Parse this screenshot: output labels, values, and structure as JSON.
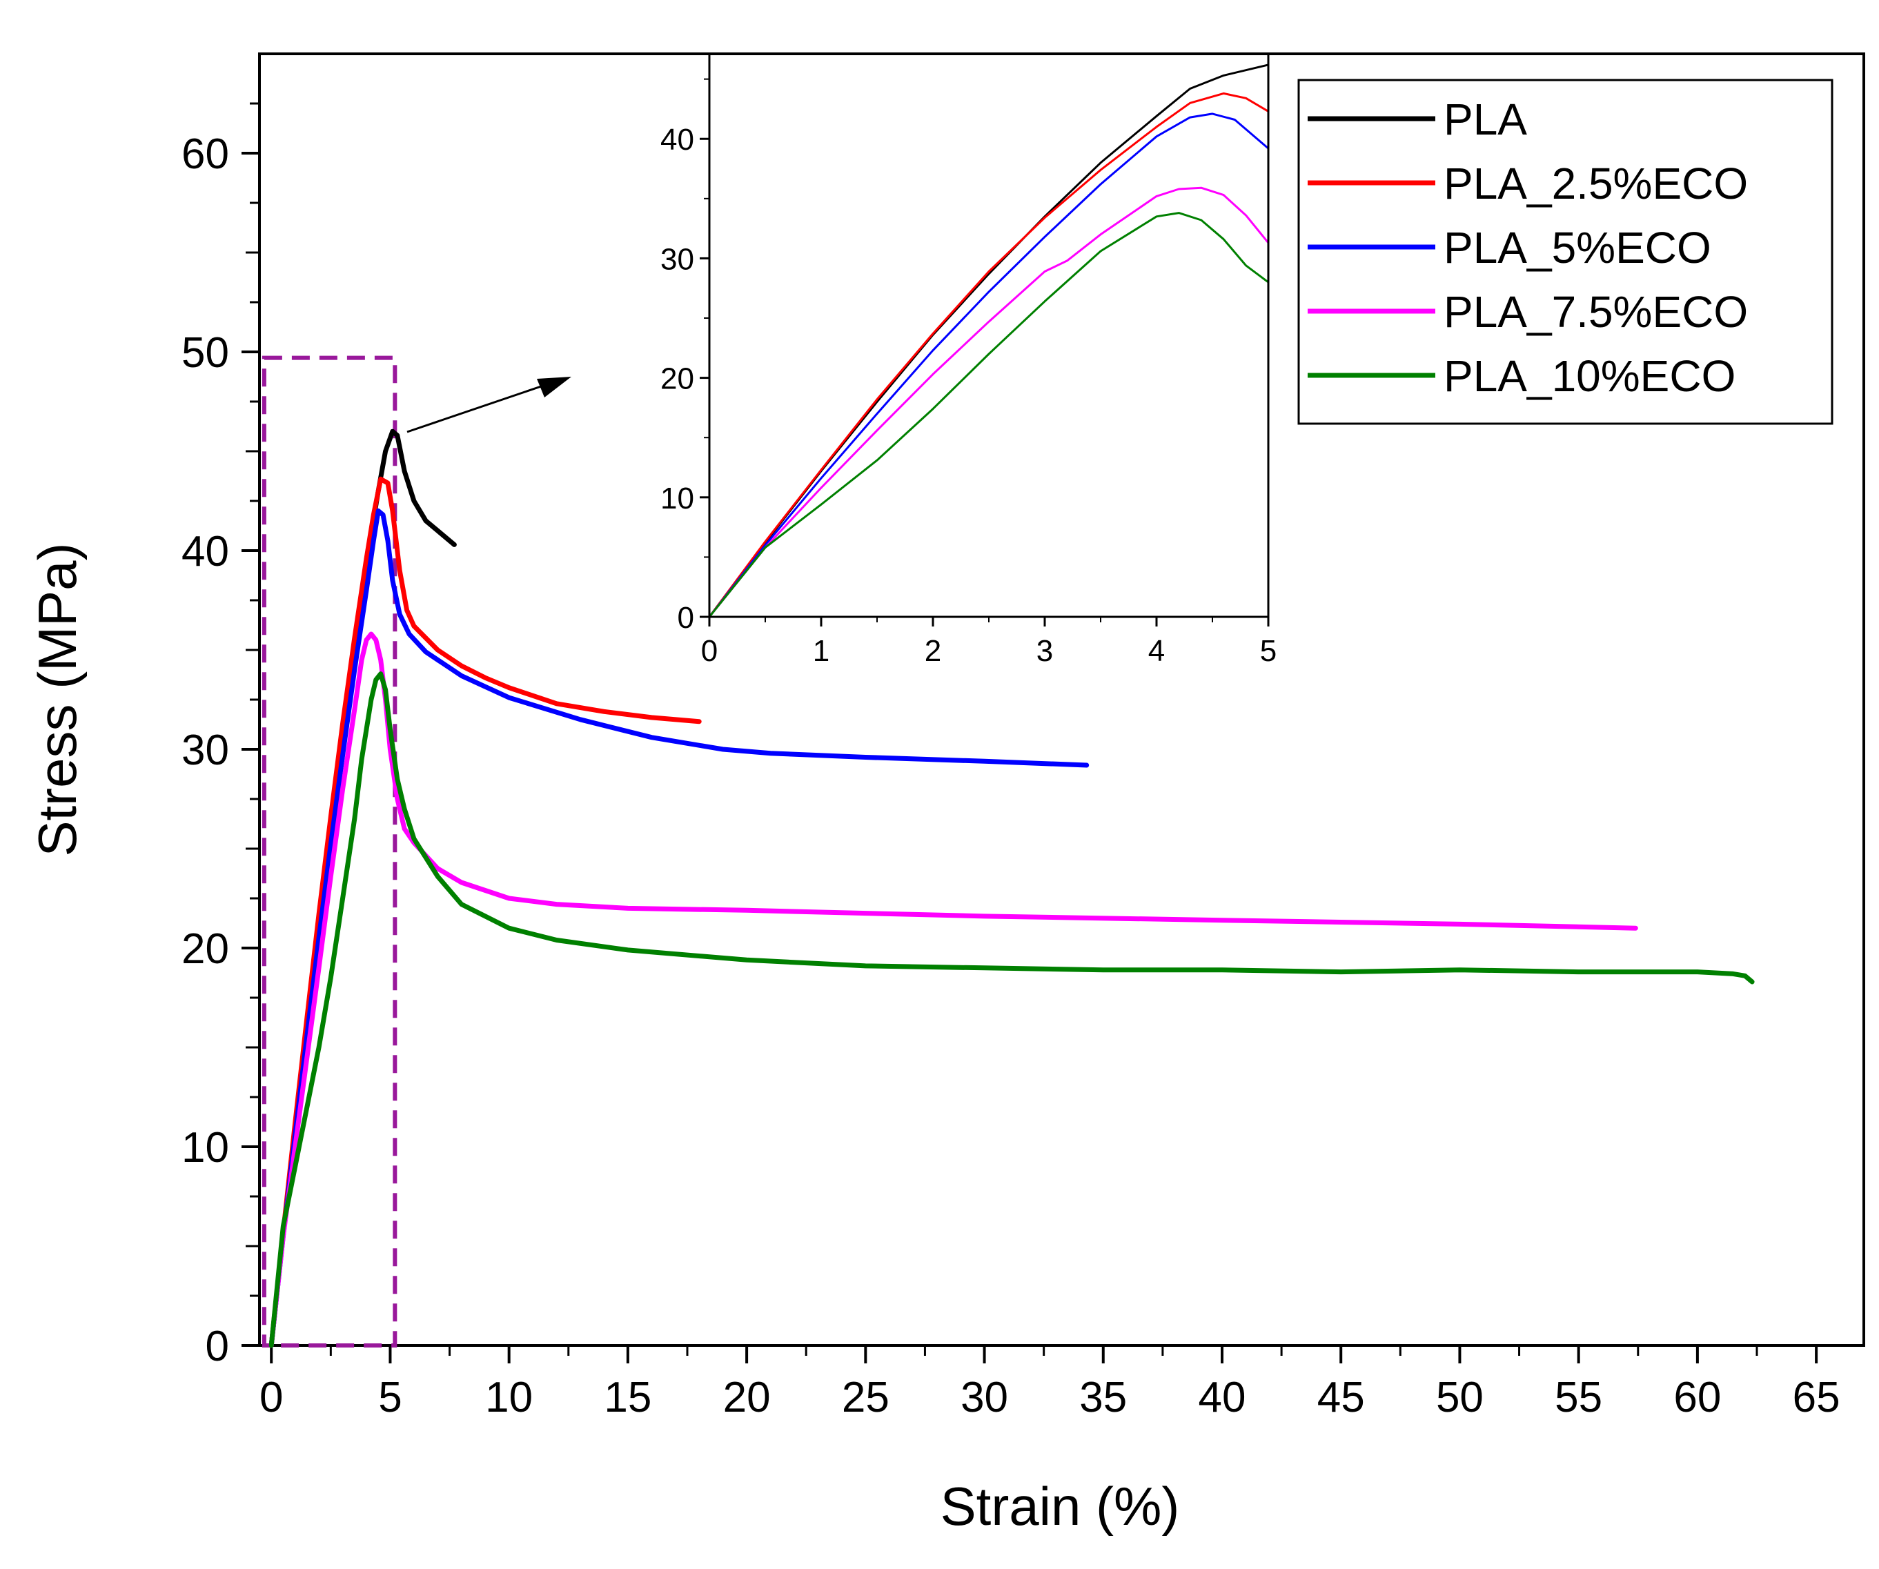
{
  "chart_data": {
    "type": "line",
    "xlabel": "Strain (%)",
    "ylabel": "Stress (MPa)",
    "xlim": [
      -0.5,
      67
    ],
    "ylim": [
      0,
      65
    ],
    "xticks": [
      0,
      5,
      10,
      15,
      20,
      25,
      30,
      35,
      40,
      45,
      50,
      55,
      60,
      65
    ],
    "xtick_labels": [
      "0",
      "5",
      "10",
      "15",
      "20",
      "25",
      "30",
      "35",
      "40",
      "45",
      "50",
      "55",
      "60",
      "65"
    ],
    "yticks": [
      0,
      10,
      20,
      30,
      40,
      50,
      60
    ],
    "ytick_labels": [
      "0",
      "10",
      "20",
      "30",
      "40",
      "50",
      "60"
    ],
    "legend_position": "top-right",
    "zoom_box": {
      "x_range": [
        -0.3,
        5.2
      ],
      "y_range": [
        0,
        49.7
      ],
      "style": "dashed",
      "color": "#99189b"
    },
    "series": [
      {
        "name": "PLA",
        "color": "#000000",
        "x": [
          0,
          0.5,
          1,
          1.5,
          2,
          2.5,
          3,
          3.5,
          4,
          4.5,
          4.8,
          5.1,
          5.3,
          5.6,
          6.0,
          6.5,
          7.0,
          7.7
        ],
        "y": [
          0,
          5.6,
          11.0,
          16.3,
          21.3,
          26.2,
          30.9,
          35.2,
          39.4,
          43.0,
          45.0,
          46.0,
          45.8,
          44.0,
          42.5,
          41.5,
          41.0,
          40.3
        ]
      },
      {
        "name": "PLA_2.5%ECO",
        "color": "#ff0000",
        "x": [
          0,
          0.5,
          1,
          1.5,
          2,
          2.5,
          3,
          3.5,
          4,
          4.3,
          4.6,
          4.9,
          5.1,
          5.4,
          5.7,
          6.0,
          7,
          8,
          9,
          10,
          12,
          14,
          16,
          18
        ],
        "y": [
          0,
          5.7,
          11.2,
          16.5,
          21.7,
          26.6,
          31.3,
          35.6,
          39.6,
          41.8,
          43.6,
          43.4,
          42.0,
          39.0,
          37.0,
          36.2,
          35.0,
          34.2,
          33.6,
          33.1,
          32.3,
          31.9,
          31.6,
          31.4
        ]
      },
      {
        "name": "PLA_5%ECO",
        "color": "#0000ff",
        "x": [
          0,
          0.5,
          1,
          1.5,
          2,
          2.5,
          3,
          3.5,
          4,
          4.3,
          4.5,
          4.7,
          4.9,
          5.1,
          5.4,
          5.8,
          6.5,
          8,
          10,
          13,
          16,
          19,
          21,
          25,
          30,
          34.3
        ],
        "y": [
          0,
          5.5,
          10.6,
          15.6,
          20.5,
          25.2,
          29.7,
          34.0,
          38.0,
          40.5,
          42.0,
          41.8,
          40.5,
          38.5,
          36.8,
          35.8,
          34.9,
          33.7,
          32.6,
          31.5,
          30.6,
          30.0,
          29.8,
          29.6,
          29.4,
          29.2
        ]
      },
      {
        "name": "PLA_7.5%ECO",
        "color": "#ff00ff",
        "x": [
          0,
          0.5,
          1,
          1.5,
          2,
          2.5,
          3,
          3.5,
          3.8,
          4.0,
          4.2,
          4.4,
          4.6,
          4.8,
          5.0,
          5.3,
          5.6,
          6.0,
          7,
          8,
          10,
          12,
          15,
          20,
          30,
          40,
          50,
          57.4
        ],
        "y": [
          0,
          5.5,
          10.0,
          14.5,
          19.0,
          23.6,
          28.0,
          32.0,
          34.5,
          35.5,
          35.8,
          35.5,
          34.5,
          32.5,
          30.0,
          27.5,
          26.0,
          25.3,
          24.0,
          23.3,
          22.5,
          22.2,
          22.0,
          21.9,
          21.6,
          21.4,
          21.2,
          21.0
        ]
      },
      {
        "name": "PLA_10%ECO",
        "color": "#008000",
        "x": [
          0,
          0.5,
          1,
          1.5,
          2,
          2.5,
          3,
          3.5,
          3.8,
          4.0,
          4.2,
          4.4,
          4.6,
          4.8,
          5.0,
          5.3,
          5.6,
          6.0,
          7,
          8,
          10,
          12,
          15,
          20,
          25,
          30,
          35,
          40,
          45,
          50,
          55,
          60,
          61.5,
          62.0,
          62.3
        ],
        "y": [
          0,
          6.0,
          9.0,
          12.0,
          15.0,
          18.5,
          22.5,
          26.5,
          29.5,
          31.0,
          32.5,
          33.5,
          33.8,
          33.0,
          31.0,
          28.5,
          27.0,
          25.5,
          23.6,
          22.2,
          21.0,
          20.4,
          19.9,
          19.4,
          19.1,
          19.0,
          18.9,
          18.9,
          18.8,
          18.9,
          18.8,
          18.8,
          18.7,
          18.6,
          18.3
        ]
      }
    ],
    "inset": {
      "xlim": [
        0,
        5
      ],
      "ylim": [
        0,
        47
      ],
      "xticks": [
        0,
        1,
        2,
        3,
        4,
        5
      ],
      "xtick_labels": [
        "0",
        "1",
        "2",
        "3",
        "4",
        "5"
      ],
      "yticks": [
        0,
        10,
        20,
        30,
        40
      ],
      "ytick_labels": [
        "0",
        "10",
        "20",
        "30",
        "40"
      ],
      "series": [
        {
          "name": "PLA",
          "color": "#000000",
          "x": [
            0,
            0.5,
            1,
            1.5,
            2,
            2.5,
            3,
            3.5,
            4,
            4.3,
            4.6,
            5.0
          ],
          "y": [
            0,
            6.2,
            12.2,
            18.0,
            23.6,
            28.7,
            33.5,
            38.0,
            41.9,
            44.2,
            45.3,
            46.2
          ]
        },
        {
          "name": "PLA_2.5%ECO",
          "color": "#ff0000",
          "x": [
            0,
            0.5,
            1,
            1.5,
            2,
            2.5,
            3,
            3.5,
            4,
            4.3,
            4.6,
            4.8,
            5.0
          ],
          "y": [
            0,
            6.3,
            12.3,
            18.2,
            23.7,
            28.9,
            33.4,
            37.4,
            41.0,
            43.0,
            43.8,
            43.4,
            42.3
          ]
        },
        {
          "name": "PLA_5%ECO",
          "color": "#0000ff",
          "x": [
            0,
            0.5,
            1,
            1.5,
            2,
            2.5,
            3,
            3.5,
            4,
            4.3,
            4.5,
            4.7,
            5.0
          ],
          "y": [
            0,
            6.0,
            11.6,
            17.0,
            22.3,
            27.2,
            31.8,
            36.2,
            40.2,
            41.8,
            42.1,
            41.6,
            39.2
          ]
        },
        {
          "name": "PLA_7.5%ECO",
          "color": "#ff00ff",
          "x": [
            0,
            0.5,
            1,
            1.5,
            2,
            2.5,
            3,
            3.2,
            3.5,
            4,
            4.2,
            4.4,
            4.6,
            4.8,
            5.0
          ],
          "y": [
            0,
            5.8,
            10.8,
            15.6,
            20.3,
            24.7,
            28.9,
            29.8,
            32.0,
            35.2,
            35.8,
            35.9,
            35.3,
            33.6,
            31.3
          ]
        },
        {
          "name": "PLA_10%ECO",
          "color": "#008000",
          "x": [
            0,
            0.5,
            1,
            1.5,
            2,
            2.5,
            3,
            3.5,
            4,
            4.2,
            4.4,
            4.6,
            4.8,
            5.0
          ],
          "y": [
            0,
            5.8,
            9.4,
            13.1,
            17.4,
            22.0,
            26.4,
            30.6,
            33.5,
            33.8,
            33.2,
            31.6,
            29.4,
            28.0
          ]
        }
      ]
    }
  }
}
